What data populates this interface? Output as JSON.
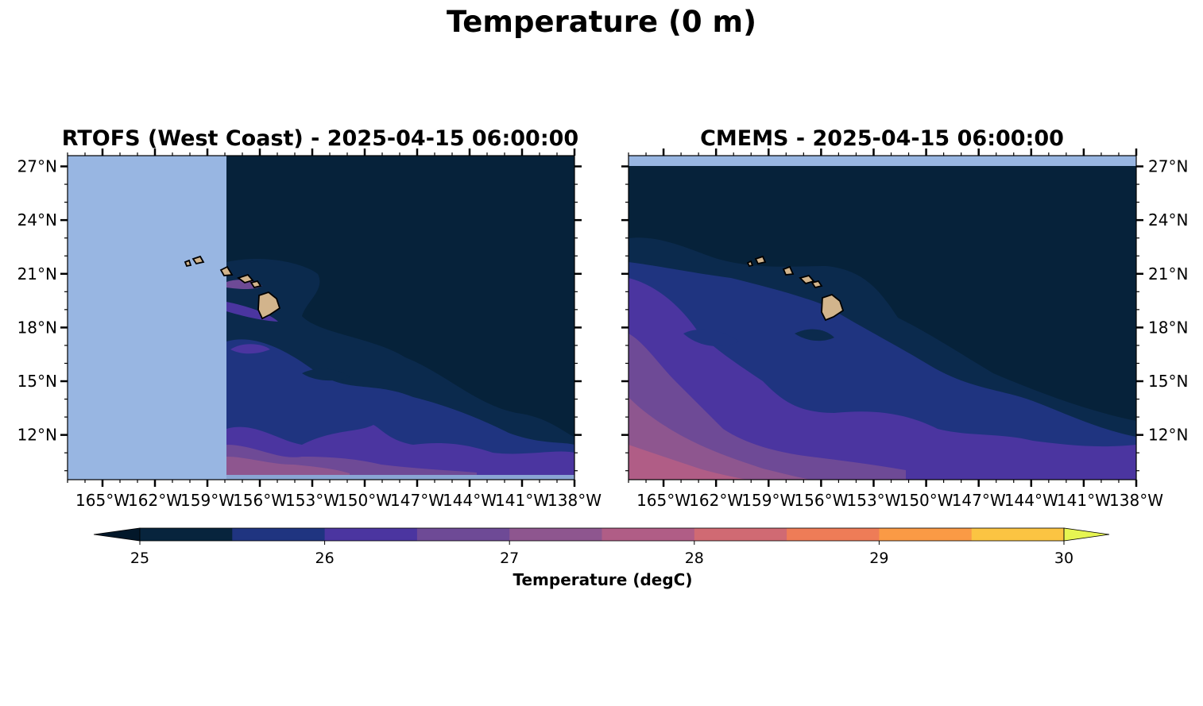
{
  "figure": {
    "title": "Temperature (0 m)"
  },
  "panels": [
    {
      "title": "RTOFS (West Coast) - 2025-04-15 06:00:00",
      "lat_labels_side": "left"
    },
    {
      "title": "CMEMS - 2025-04-15 06:00:00",
      "lat_labels_side": "right"
    }
  ],
  "map": {
    "lon_range": [
      -167.0,
      -138.0
    ],
    "lat_range": [
      9.5,
      27.6
    ],
    "lon_ticks": [
      {
        "value": -165,
        "label": "165°W"
      },
      {
        "value": -162,
        "label": "162°W"
      },
      {
        "value": -159,
        "label": "159°W"
      },
      {
        "value": -156,
        "label": "156°W"
      },
      {
        "value": -153,
        "label": "153°W"
      },
      {
        "value": -150,
        "label": "150°W"
      },
      {
        "value": -147,
        "label": "147°W"
      },
      {
        "value": -144,
        "label": "144°W"
      },
      {
        "value": -141,
        "label": "141°W"
      },
      {
        "value": -138,
        "label": "138°W"
      }
    ],
    "lat_ticks": [
      {
        "value": 27,
        "label": "27°N"
      },
      {
        "value": 24,
        "label": "24°N"
      },
      {
        "value": 21,
        "label": "21°N"
      },
      {
        "value": 18,
        "label": "18°N"
      },
      {
        "value": 15,
        "label": "15°N"
      },
      {
        "value": 12,
        "label": "12°N"
      }
    ],
    "land_color": "#d2b48c",
    "nodata_color": "#98b6e2"
  },
  "colorbar": {
    "label": "Temperature (degC)",
    "vmin": 25,
    "vmax": 30,
    "step": 0.5,
    "extend": "both",
    "tick_labels": [
      "25",
      "26",
      "27",
      "28",
      "29",
      "30"
    ],
    "under_color": "#03182a",
    "over_color": "#e6f552",
    "colors": [
      "#07243d",
      "#1f3480",
      "#4b35a0",
      "#6e4a96",
      "#8e568f",
      "#b05d86",
      "#d06a73",
      "#ee7c57",
      "#fa9a45",
      "#fbc442"
    ]
  }
}
